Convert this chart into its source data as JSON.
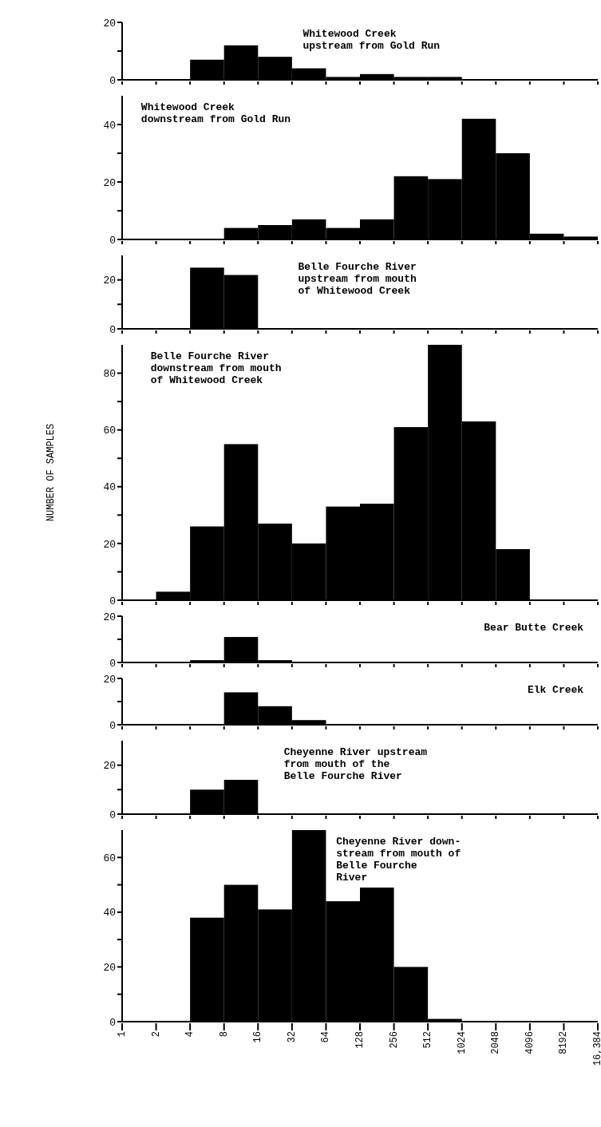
{
  "chart_data": [
    {
      "type": "histogram",
      "title": "Whitewood Creek\nupstream from Gold Run",
      "bins": [
        1,
        2,
        4,
        8,
        16,
        32,
        64,
        128,
        256,
        512,
        1024,
        2048,
        4096,
        8192,
        16384
      ],
      "values": [
        0,
        0,
        7,
        12,
        8,
        4,
        1,
        2,
        1,
        1,
        0,
        0,
        0,
        0
      ],
      "color": "#000000",
      "log": "x",
      "xlim": [
        1,
        16384
      ],
      "xticks": [
        1,
        2,
        4,
        8,
        16,
        32,
        64,
        128,
        256,
        512,
        1024,
        2048,
        4096,
        8192,
        16384
      ],
      "ylim": [
        0,
        20
      ],
      "yticks": [
        0,
        {
          "value": 10,
          "label": null
        },
        20
      ],
      "tick_labels": "y"
    },
    {
      "type": "histogram",
      "title": "Whitewood Creek\ndownstream from Gold Run",
      "bins": [
        1,
        2,
        4,
        8,
        16,
        32,
        64,
        128,
        256,
        512,
        1024,
        2048,
        4096,
        8192,
        16384
      ],
      "values": [
        0,
        0,
        0,
        4,
        5,
        7,
        4,
        7,
        22,
        21,
        42,
        30,
        2,
        1
      ],
      "color": "#000000",
      "log": "x",
      "xlim": [
        1,
        16384
      ],
      "xticks": [
        1,
        2,
        4,
        8,
        16,
        32,
        64,
        128,
        256,
        512,
        1024,
        2048,
        4096,
        8192,
        16384
      ],
      "ylim": [
        0,
        50
      ],
      "yticks": [
        0,
        {
          "value": 10,
          "label": null
        },
        20,
        {
          "value": 30,
          "label": null
        },
        40
      ],
      "tick_labels": "y"
    },
    {
      "type": "histogram",
      "title": "Belle Fourche River\nupstream from mouth\nof Whitewood Creek",
      "bins": [
        1,
        2,
        4,
        8,
        16,
        32,
        64,
        128,
        256,
        512,
        1024,
        2048,
        4096,
        8192,
        16384
      ],
      "values": [
        0,
        0,
        25,
        22,
        0,
        0,
        0,
        0,
        0,
        0,
        0,
        0,
        0,
        0
      ],
      "color": "#000000",
      "log": "x",
      "xlim": [
        1,
        16384
      ],
      "xticks": [
        1,
        2,
        4,
        8,
        16,
        32,
        64,
        128,
        256,
        512,
        1024,
        2048,
        4096,
        8192,
        16384
      ],
      "ylim": [
        0,
        30
      ],
      "yticks": [
        0,
        {
          "value": 10,
          "label": null
        },
        20
      ],
      "tick_labels": "y"
    },
    {
      "type": "histogram",
      "title": "Belle Fourche River\ndownstream from mouth\nof Whitewood Creek",
      "ylabel": "NUMBER OF SAMPLES",
      "bins": [
        1,
        2,
        4,
        8,
        16,
        32,
        64,
        128,
        256,
        512,
        1024,
        2048,
        4096,
        8192,
        16384
      ],
      "values": [
        0,
        3,
        26,
        55,
        27,
        20,
        33,
        34,
        61,
        90,
        63,
        18,
        0,
        0
      ],
      "color": "#000000",
      "log": "x",
      "xlim": [
        1,
        16384
      ],
      "xticks": [
        1,
        2,
        4,
        8,
        16,
        32,
        64,
        128,
        256,
        512,
        1024,
        2048,
        4096,
        8192,
        16384
      ],
      "ylim": [
        0,
        90
      ],
      "yticks": [
        0,
        {
          "value": 10,
          "label": null
        },
        20,
        {
          "value": 30,
          "label": null
        },
        40,
        {
          "value": 50,
          "label": null
        },
        60,
        {
          "value": 70,
          "label": null
        },
        80
      ],
      "tick_labels": "y"
    },
    {
      "type": "histogram",
      "title": "Bear Butte Creek",
      "bins": [
        1,
        2,
        4,
        8,
        16,
        32,
        64,
        128,
        256,
        512,
        1024,
        2048,
        4096,
        8192,
        16384
      ],
      "values": [
        0,
        0,
        1,
        11,
        1,
        0,
        0,
        0,
        0,
        0,
        0,
        0,
        0,
        0
      ],
      "color": "#000000",
      "log": "x",
      "xlim": [
        1,
        16384
      ],
      "xticks": [
        1,
        2,
        4,
        8,
        16,
        32,
        64,
        128,
        256,
        512,
        1024,
        2048,
        4096,
        8192,
        16384
      ],
      "ylim": [
        0,
        20
      ],
      "yticks": [
        0,
        {
          "value": 10,
          "label": null
        },
        20
      ],
      "tick_labels": "y"
    },
    {
      "type": "histogram",
      "title": "Elk Creek",
      "bins": [
        1,
        2,
        4,
        8,
        16,
        32,
        64,
        128,
        256,
        512,
        1024,
        2048,
        4096,
        8192,
        16384
      ],
      "values": [
        0,
        0,
        0,
        14,
        8,
        2,
        0,
        0,
        0,
        0,
        0,
        0,
        0,
        0
      ],
      "color": "#000000",
      "log": "x",
      "xlim": [
        1,
        16384
      ],
      "xticks": [
        1,
        2,
        4,
        8,
        16,
        32,
        64,
        128,
        256,
        512,
        1024,
        2048,
        4096,
        8192,
        16384
      ],
      "ylim": [
        0,
        20
      ],
      "yticks": [
        0,
        {
          "value": 10,
          "label": null
        },
        20
      ],
      "tick_labels": "y"
    },
    {
      "type": "histogram",
      "title": "Cheyenne River upstream\nfrom mouth of the\nBelle Fourche River",
      "bins": [
        1,
        2,
        4,
        8,
        16,
        32,
        64,
        128,
        256,
        512,
        1024,
        2048,
        4096,
        8192,
        16384
      ],
      "values": [
        0,
        0,
        10,
        14,
        0,
        0,
        0,
        0,
        0,
        0,
        0,
        0,
        0,
        0
      ],
      "color": "#000000",
      "log": "x",
      "xlim": [
        1,
        16384
      ],
      "xticks": [
        1,
        2,
        4,
        8,
        16,
        32,
        64,
        128,
        256,
        512,
        1024,
        2048,
        4096,
        8192,
        16384
      ],
      "ylim": [
        0,
        30
      ],
      "yticks": [
        0,
        {
          "value": 10,
          "label": null
        },
        20
      ],
      "tick_labels": "y"
    },
    {
      "type": "histogram",
      "title": "Cheyenne River down-\nstream from mouth of\nBelle Fourche\nRiver",
      "bins": [
        1,
        2,
        4,
        8,
        16,
        32,
        64,
        128,
        256,
        512,
        1024,
        2048,
        4096,
        8192,
        16384
      ],
      "values": [
        0,
        0,
        38,
        50,
        41,
        70,
        44,
        49,
        20,
        1,
        0,
        0,
        0,
        0
      ],
      "color": "#000000",
      "log": "x",
      "xlim": [
        1,
        16384
      ],
      "xticks": [
        1,
        2,
        4,
        8,
        16,
        32,
        64,
        128,
        256,
        512,
        1024,
        2048,
        4096,
        8192,
        {
          "value": 16384,
          "label": "16,384"
        }
      ],
      "ylim": [
        0,
        70
      ],
      "yticks": [
        0,
        {
          "value": 10,
          "label": null
        },
        20,
        {
          "value": 30,
          "label": null
        },
        40,
        {
          "value": 50,
          "label": null
        },
        60
      ]
    }
  ]
}
